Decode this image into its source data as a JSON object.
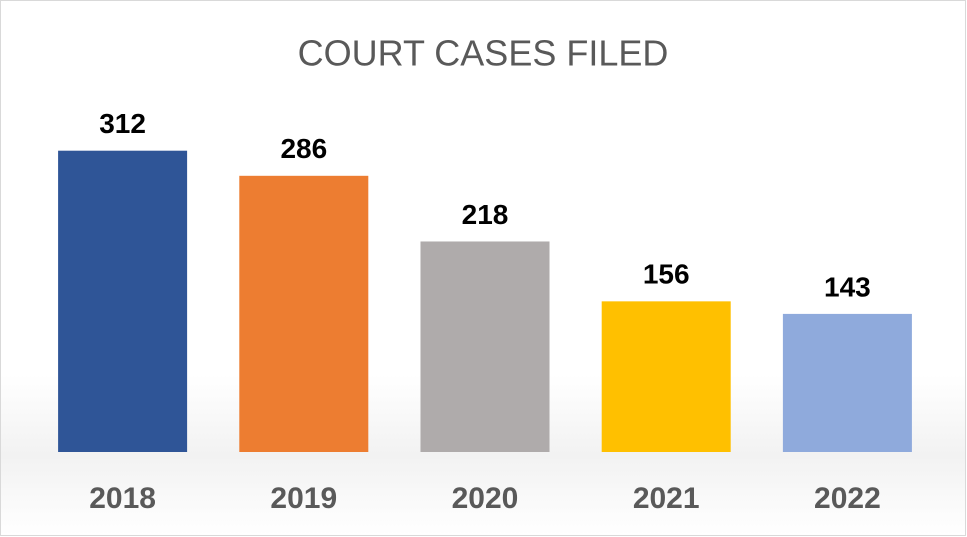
{
  "chart_data": {
    "type": "bar",
    "title": "COURT CASES FILED",
    "categories": [
      "2018",
      "2019",
      "2020",
      "2021",
      "2022"
    ],
    "values": [
      312,
      286,
      218,
      156,
      143
    ],
    "colors": [
      "#2f5597",
      "#ed7d31",
      "#afabab",
      "#ffc000",
      "#8faadc"
    ],
    "ylim": [
      0,
      350
    ],
    "data_labels": true
  }
}
